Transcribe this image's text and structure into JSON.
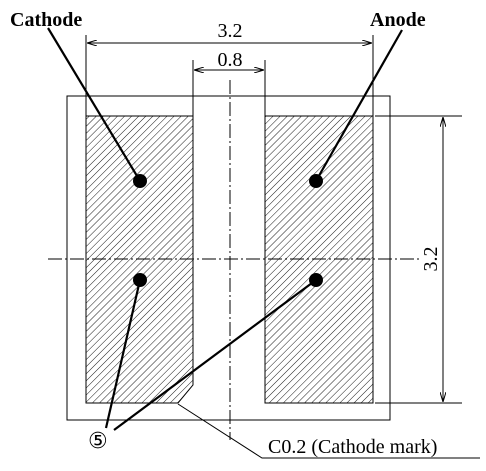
{
  "labels": {
    "cathode": "Cathode",
    "anode": "Anode",
    "width_dim": "3.2",
    "gap_dim": "0.8",
    "height_dim": "3.2",
    "callout": "⑤",
    "chamfer_note": "C0.2 (Cathode mark)"
  }
}
